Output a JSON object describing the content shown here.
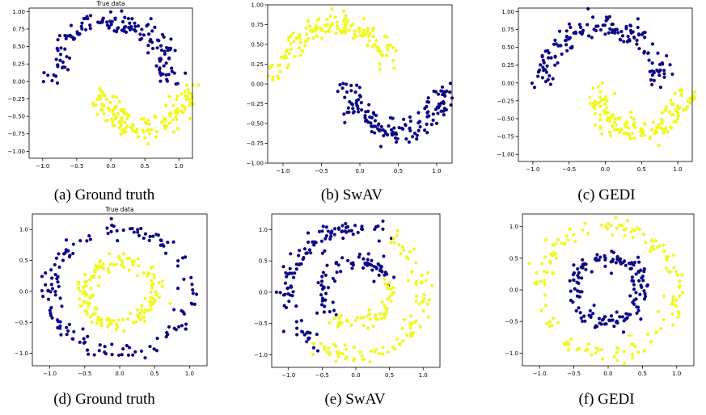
{
  "colors": {
    "cluster_a": "#0d0887",
    "cluster_b": "#f0f921"
  },
  "chart_data": [
    {
      "id": "a",
      "type": "scatter",
      "dataset": "moons",
      "title": "True data",
      "caption": "(a) Ground truth",
      "xlim": [
        -1.2,
        1.2
      ],
      "ylim": [
        -1.1,
        1.05
      ],
      "xticks": [
        -1.0,
        -0.5,
        0.0,
        0.5,
        1.0
      ],
      "xtick_labels": [
        "−1.0",
        "−0.5",
        "0.0",
        "0.5",
        "1.0"
      ],
      "yticks": [
        -1.0,
        -0.75,
        -0.5,
        -0.25,
        0.0,
        0.25,
        0.5,
        0.75,
        1.0
      ],
      "ytick_labels": [
        "−1.00",
        "−0.75",
        "−0.50",
        "−0.25",
        "0.00",
        "0.25",
        "0.50",
        "0.75",
        "1.00"
      ],
      "series": [
        {
          "color_key": "cluster_a",
          "n": 150,
          "shape": "arc",
          "cx": 0,
          "cy": 0.0,
          "r": 0.85,
          "a0": 0,
          "a1": 180,
          "noise": 0.09,
          "seed": 11
        },
        {
          "color_key": "cluster_b",
          "n": 150,
          "shape": "arc",
          "cx": 0.5,
          "cy": -0.1,
          "r": 0.6,
          "a0": 180,
          "a1": 360,
          "noise": 0.09,
          "seed": 12
        }
      ]
    },
    {
      "id": "b",
      "type": "scatter",
      "dataset": "moons",
      "title": "",
      "caption": "(b) SwAV",
      "xlim": [
        -1.2,
        1.2
      ],
      "ylim": [
        -1.0,
        1.0
      ],
      "xticks": [
        -1.0,
        -0.5,
        0.0,
        0.5,
        1.0
      ],
      "xtick_labels": [
        "−1.0",
        "−0.5",
        "0.0",
        "0.5",
        "1.0"
      ],
      "yticks": [
        -1.0,
        -0.75,
        -0.5,
        -0.25,
        0.0,
        0.25,
        0.5,
        0.75,
        1.0
      ],
      "ytick_labels": [
        "−1.00",
        "−0.75",
        "−0.50",
        "−0.25",
        "0.00",
        "0.25",
        "0.50",
        "0.75",
        "1.00"
      ],
      "series": [
        {
          "color_key": "cluster_b",
          "n": 150,
          "shape": "arc",
          "cx": -0.3,
          "cy": 0.0,
          "r": 0.75,
          "a0": 20,
          "a1": 180,
          "noise": 0.08,
          "seed": 21
        },
        {
          "color_key": "cluster_a",
          "n": 150,
          "shape": "arc",
          "cx": 0.5,
          "cy": 0.0,
          "r": 0.6,
          "a0": 180,
          "a1": 360,
          "noise": 0.08,
          "seed": 22
        }
      ]
    },
    {
      "id": "c",
      "type": "scatter",
      "dataset": "moons",
      "title": "",
      "caption": "(c) GEDI",
      "xlim": [
        -1.2,
        1.2
      ],
      "ylim": [
        -1.1,
        1.05
      ],
      "xticks": [
        -1.0,
        -0.5,
        0.0,
        0.5,
        1.0
      ],
      "xtick_labels": [
        "−1.0",
        "−0.5",
        "0.0",
        "0.5",
        "1.0"
      ],
      "yticks": [
        -1.0,
        -0.75,
        -0.5,
        -0.25,
        0.0,
        0.25,
        0.5,
        0.75,
        1.0
      ],
      "ytick_labels": [
        "−1.00",
        "−0.75",
        "−0.50",
        "−0.25",
        "0.00",
        "0.25",
        "0.50",
        "0.75",
        "1.00"
      ],
      "series": [
        {
          "color_key": "cluster_a",
          "n": 150,
          "shape": "arc",
          "cx": -0.05,
          "cy": 0.0,
          "r": 0.8,
          "a0": 0,
          "a1": 180,
          "noise": 0.09,
          "seed": 31
        },
        {
          "color_key": "cluster_b",
          "n": 150,
          "shape": "arc",
          "cx": 0.5,
          "cy": -0.1,
          "r": 0.6,
          "a0": 180,
          "a1": 360,
          "noise": 0.09,
          "seed": 32
        }
      ]
    },
    {
      "id": "d",
      "type": "scatter",
      "dataset": "circles",
      "title": "True data",
      "caption": "(d) Ground truth",
      "xlim": [
        -1.25,
        1.25
      ],
      "ylim": [
        -1.2,
        1.25
      ],
      "xticks": [
        -1.0,
        -0.5,
        0.0,
        0.5,
        1.0
      ],
      "xtick_labels": [
        "−1.0",
        "−0.5",
        "0.0",
        "0.5",
        "1.0"
      ],
      "yticks": [
        -1.0,
        -0.5,
        0.0,
        0.5,
        1.0
      ],
      "ytick_labels": [
        "−1.0",
        "−0.5",
        "0.0",
        "0.5",
        "1.0"
      ],
      "series": [
        {
          "color_key": "cluster_a",
          "n": 150,
          "shape": "ring",
          "cx": 0,
          "cy": 0,
          "r": 1.0,
          "noise": 0.07,
          "seed": 41
        },
        {
          "color_key": "cluster_b",
          "n": 150,
          "shape": "ring",
          "cx": 0,
          "cy": 0,
          "r": 0.5,
          "noise": 0.07,
          "seed": 42
        }
      ]
    },
    {
      "id": "e",
      "type": "scatter",
      "dataset": "circles",
      "title": "",
      "caption": "(e) SwAV",
      "xlim": [
        -1.25,
        1.25
      ],
      "ylim": [
        -1.2,
        1.25
      ],
      "xticks": [
        -1.0,
        -0.5,
        0.0,
        0.5,
        1.0
      ],
      "xtick_labels": [
        "−1.0",
        "−0.5",
        "0.0",
        "0.5",
        "1.0"
      ],
      "yticks": [
        -1.0,
        -0.5,
        0.0,
        0.5,
        1.0
      ],
      "ytick_labels": [
        "−1.0",
        "−0.5",
        "0.0",
        "0.5",
        "1.0"
      ],
      "series": [
        {
          "color_key": "cluster_a",
          "n": 110,
          "shape": "arc",
          "cx": 0,
          "cy": 0,
          "r": 1.0,
          "a0": 60,
          "a1": 235,
          "noise": 0.07,
          "seed": 51
        },
        {
          "color_key": "cluster_b",
          "n": 95,
          "shape": "arc",
          "cx": 0,
          "cy": 0,
          "r": 1.0,
          "a0": 235,
          "a1": 420,
          "noise": 0.07,
          "seed": 52
        },
        {
          "color_key": "cluster_a",
          "n": 70,
          "shape": "arc",
          "cx": 0,
          "cy": 0,
          "r": 0.5,
          "a0": 20,
          "a1": 225,
          "noise": 0.07,
          "seed": 53
        },
        {
          "color_key": "cluster_b",
          "n": 55,
          "shape": "arc",
          "cx": 0,
          "cy": 0,
          "r": 0.5,
          "a0": 225,
          "a1": 380,
          "noise": 0.07,
          "seed": 54
        }
      ]
    },
    {
      "id": "f",
      "type": "scatter",
      "dataset": "circles",
      "title": "",
      "caption": "(f) GEDI",
      "xlim": [
        -1.25,
        1.25
      ],
      "ylim": [
        -1.2,
        1.2
      ],
      "xticks": [
        -1.0,
        -0.5,
        0.0,
        0.5,
        1.0
      ],
      "xtick_labels": [
        "−1.0",
        "−0.5",
        "0.0",
        "0.5",
        "1.0"
      ],
      "yticks": [
        -1.0,
        -0.5,
        0.0,
        0.5,
        1.0
      ],
      "ytick_labels": [
        "−1.0",
        "−0.5",
        "0.0",
        "0.5",
        "1.0"
      ],
      "series": [
        {
          "color_key": "cluster_b",
          "n": 150,
          "shape": "ring",
          "cx": 0,
          "cy": 0,
          "r": 1.0,
          "noise": 0.07,
          "seed": 61
        },
        {
          "color_key": "cluster_a",
          "n": 150,
          "shape": "ring",
          "cx": 0,
          "cy": 0,
          "r": 0.5,
          "noise": 0.07,
          "seed": 62
        }
      ]
    }
  ]
}
